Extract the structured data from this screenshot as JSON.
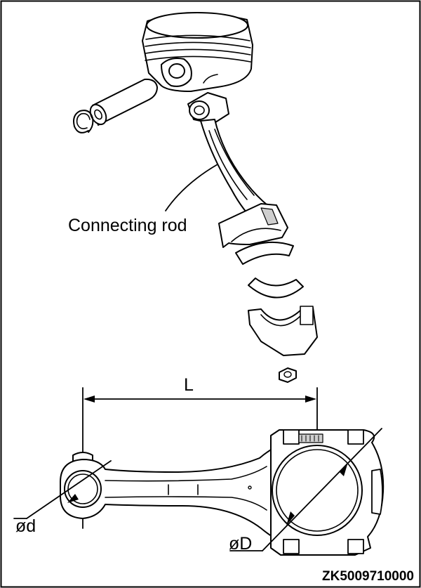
{
  "labels": {
    "connecting_rod": "Connecting rod",
    "length": "L",
    "small_end_diameter": "ød",
    "big_end_diameter": "øD",
    "figure_code": "ZK5009710000"
  }
}
